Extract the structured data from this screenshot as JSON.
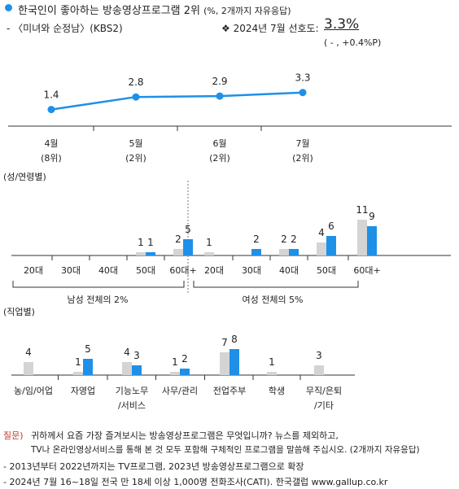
{
  "header": {
    "title": "한국인이 좋아하는 방송영상프로그램 2위",
    "title_note": "(%, 2개까지 자유응답)",
    "program": "- 〈미녀와 순정남〉(KBS2)",
    "pref_label": "❖  2024년 7월 선호도:",
    "pref_value": "3.3%",
    "pref_change": "( - , +0.4%P)"
  },
  "colors": {
    "accent": "#1e90e8",
    "gray": "#d4d4d4",
    "axis": "#333333"
  },
  "chart_data": [
    {
      "type": "line",
      "x": [
        "4월",
        "5월",
        "6월",
        "7월"
      ],
      "x_sub": [
        "(8위)",
        "(2위)",
        "(2위)",
        "(2위)"
      ],
      "values": [
        1.4,
        2.8,
        2.9,
        3.3
      ],
      "labels": [
        "1.4",
        "2.8",
        "2.9",
        "3.3"
      ]
    },
    {
      "type": "bar",
      "section_label": "(성/연령별)",
      "groups": [
        {
          "caption": "남성 전체의 2%",
          "categories": [
            "20대",
            "30대",
            "40대",
            "50대",
            "60대+"
          ],
          "prev": [
            null,
            null,
            null,
            1,
            2
          ],
          "curr": [
            null,
            null,
            null,
            1,
            5
          ],
          "prev_labels": [
            "",
            "",
            "",
            "1",
            "2"
          ],
          "curr_labels": [
            "",
            "",
            "",
            "1",
            "5"
          ]
        },
        {
          "caption": "여성 전체의 5%",
          "categories": [
            "20대",
            "30대",
            "40대",
            "50대",
            "60대+"
          ],
          "prev": [
            1,
            0,
            2,
            4,
            11
          ],
          "curr": [
            0,
            2,
            2,
            6,
            9
          ],
          "prev_labels": [
            "1",
            "",
            "2",
            "4",
            "11"
          ],
          "curr_labels": [
            "",
            "2",
            "2",
            "6",
            "9"
          ]
        }
      ]
    },
    {
      "type": "bar",
      "section_label": "(직업별)",
      "categories": [
        "농/임/어업",
        "자영업",
        "기능노무\n/서비스",
        "사무/관리",
        "전업주부",
        "학생",
        "무직/은퇴\n/기타"
      ],
      "prev": [
        4,
        1,
        4,
        1,
        7,
        1,
        3
      ],
      "curr": [
        0,
        5,
        3,
        2,
        8,
        0,
        0
      ],
      "prev_labels": [
        "4",
        "1",
        "4",
        "1",
        "7",
        "1",
        "3"
      ],
      "curr_labels": [
        "",
        "5",
        "3",
        "2",
        "8",
        "",
        ""
      ]
    }
  ],
  "notes": {
    "question_label": "질문)",
    "question_line1": "귀하께서 요즘 가장 즐겨보시는 방송영상프로그램은 무엇입니까? 뉴스를 제외하고,",
    "question_line2": "TV나 온라인영상서비스를 통해 본 것 모두 포함해 구체적인 프로그램을 말씀해 주십시오. (2개까지 자유응답)",
    "note1": "- 2013년부터 2022년까지는 TV프로그램, 2023년 방송영상프로그램으로 확장",
    "note2": "- 2024년 7월 16~18일 전국 만 18세 이상 1,000명 전화조사(CATI). 한국갤럽 www.gallup.co.kr"
  }
}
